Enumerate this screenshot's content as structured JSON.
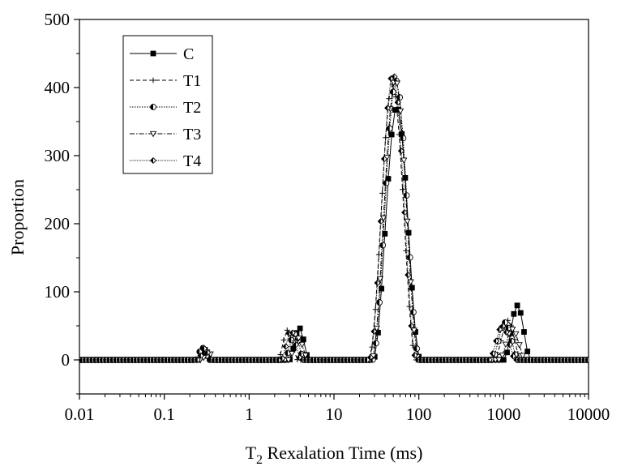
{
  "chart_data": {
    "type": "line",
    "title": "",
    "xlabel": {
      "main": "T",
      "sub": "2",
      "rest": " Rexalation Time (ms)"
    },
    "ylabel": "Proportion",
    "xscale": "log",
    "xlim": [
      0.01,
      10000
    ],
    "ylim": [
      -50,
      500
    ],
    "xticks": [
      0.01,
      0.1,
      1,
      10,
      100,
      1000,
      10000
    ],
    "xtick_labels": [
      "0.01",
      "0.1",
      "1",
      "10",
      "100",
      "1000",
      "10000"
    ],
    "yticks": [
      0,
      100,
      200,
      300,
      400,
      500
    ],
    "ytick_labels": [
      "0",
      "100",
      "200",
      "300",
      "400",
      "500"
    ],
    "legend_position": "top-left",
    "series": [
      {
        "name": "C",
        "marker": "square-filled",
        "dash": "",
        "peaks": [
          {
            "center": 0.3,
            "height": 15,
            "halfwidth": 2
          },
          {
            "center": 3.9,
            "height": 47,
            "halfwidth": 3
          },
          {
            "center": 55,
            "height": 372,
            "halfwidth": 7
          },
          {
            "center": 1450,
            "height": 80,
            "halfwidth": 4
          }
        ]
      },
      {
        "name": "T1",
        "marker": "plus",
        "dash": "5,3",
        "peaks": [
          {
            "center": 0.29,
            "height": 16,
            "halfwidth": 2
          },
          {
            "center": 2.8,
            "height": 44,
            "halfwidth": 3
          },
          {
            "center": 48,
            "height": 405,
            "halfwidth": 7
          },
          {
            "center": 1100,
            "height": 58,
            "halfwidth": 4
          }
        ]
      },
      {
        "name": "T2",
        "marker": "circle-half",
        "dash": "1.5,1.5",
        "peaks": [
          {
            "center": 0.27,
            "height": 18,
            "halfwidth": 2
          },
          {
            "center": 3.3,
            "height": 38,
            "halfwidth": 3
          },
          {
            "center": 52,
            "height": 410,
            "halfwidth": 7
          },
          {
            "center": 1000,
            "height": 55,
            "halfwidth": 4
          }
        ]
      },
      {
        "name": "T3",
        "marker": "triangle-down-open",
        "dash": "6,2,1.5,2",
        "peaks": [
          {
            "center": 0.31,
            "height": 12,
            "halfwidth": 2
          },
          {
            "center": 3.6,
            "height": 32,
            "halfwidth": 3
          },
          {
            "center": 50,
            "height": 412,
            "halfwidth": 7
          },
          {
            "center": 1200,
            "height": 45,
            "halfwidth": 4
          }
        ]
      },
      {
        "name": "T4",
        "marker": "diamond-half",
        "dash": "1,1.2",
        "peaks": [
          {
            "center": 0.28,
            "height": 17,
            "halfwidth": 2
          },
          {
            "center": 2.9,
            "height": 42,
            "halfwidth": 3
          },
          {
            "center": 46,
            "height": 420,
            "halfwidth": 7
          },
          {
            "center": 900,
            "height": 50,
            "halfwidth": 4
          }
        ]
      }
    ]
  }
}
